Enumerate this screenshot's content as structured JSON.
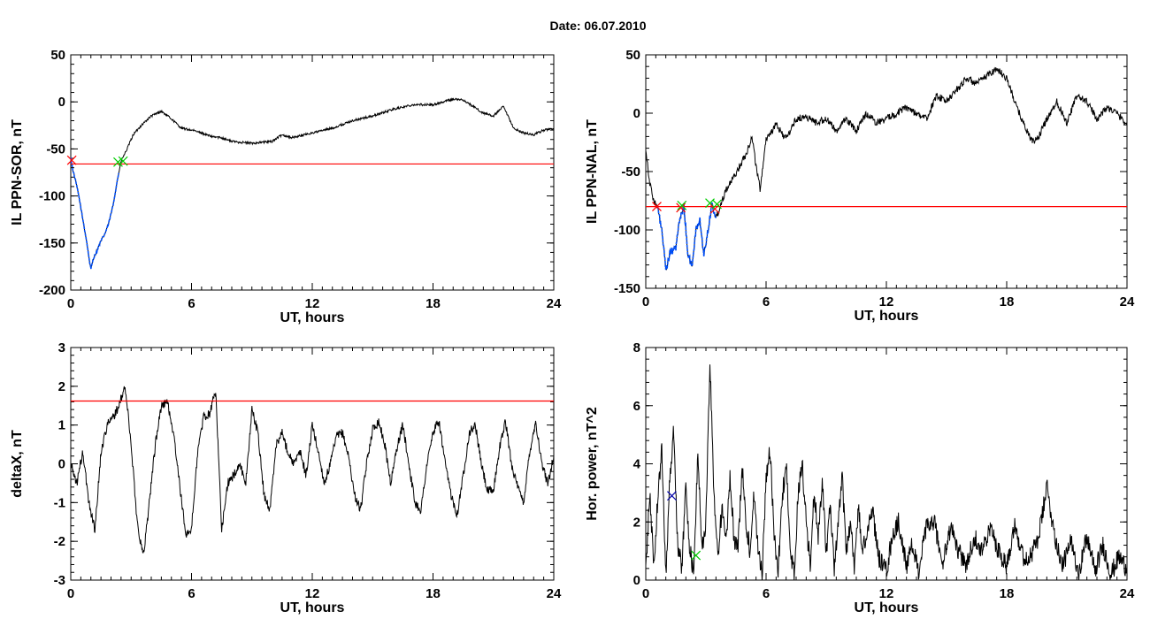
{
  "figure": {
    "title": "Date:  06.07.2010"
  },
  "colors": {
    "trace": "#000000",
    "threshold": "#ff0000",
    "event": "#0050ff",
    "marker_start": "#ff0000",
    "marker_end": "#00cc00",
    "marker_peak": "#0000aa"
  },
  "chart_data": [
    {
      "id": "il-sor",
      "type": "line",
      "title": "",
      "xlabel": "UT, hours",
      "ylabel": "IL PPN-SOR, nT",
      "xlim": [
        0,
        24
      ],
      "ylim": [
        -200,
        50
      ],
      "xticks": [
        0,
        6,
        12,
        18,
        24
      ],
      "yticks": [
        -200,
        -150,
        -100,
        -50,
        0,
        50
      ],
      "threshold": -66,
      "noise": 1.2,
      "series": [
        {
          "x": [
            0,
            0.1,
            0.25,
            0.4,
            0.6,
            0.8,
            0.9,
            1.0,
            1.1,
            1.3,
            1.5,
            1.7,
            1.9,
            2.1,
            2.3,
            2.5,
            2.8,
            3.1,
            3.5,
            4.0,
            4.5,
            5.0,
            5.5,
            6.0,
            6.5,
            7.0,
            7.5,
            8.0,
            9.0,
            10.0,
            10.5,
            11.0,
            12.0,
            13.0,
            14.0,
            15.0,
            16.0,
            17.0,
            18.0,
            18.5,
            19.0,
            19.5,
            20.0,
            20.5,
            21.0,
            21.5,
            22.0,
            22.5,
            23.0,
            23.5,
            24.0
          ],
          "y": [
            -60,
            -72,
            -85,
            -100,
            -125,
            -150,
            -165,
            -178,
            -168,
            -158,
            -148,
            -140,
            -128,
            -110,
            -85,
            -63,
            -50,
            -35,
            -25,
            -15,
            -10,
            -18,
            -28,
            -30,
            -33,
            -37,
            -38,
            -42,
            -44,
            -42,
            -35,
            -38,
            -33,
            -28,
            -20,
            -15,
            -8,
            -3,
            -3,
            0,
            3,
            2,
            -5,
            -12,
            -15,
            -5,
            -28,
            -33,
            -35,
            -30,
            -28
          ]
        }
      ],
      "event": {
        "x_start": 0,
        "x_end": 2.4,
        "color": "#0050ff"
      },
      "markers": [
        {
          "x": 0.05,
          "y": -62,
          "symbol": "x",
          "color": "#ff0000"
        },
        {
          "x": 2.35,
          "y": -64,
          "symbol": "x",
          "color": "#00cc00"
        },
        {
          "x": 2.6,
          "y": -63,
          "symbol": "x",
          "color": "#00cc00"
        }
      ]
    },
    {
      "id": "il-nal",
      "type": "line",
      "title": "",
      "xlabel": "UT, hours",
      "ylabel": "IL PPN-NAL, nT",
      "xlim": [
        0,
        24
      ],
      "ylim": [
        -150,
        50
      ],
      "xticks": [
        0,
        6,
        12,
        18,
        24
      ],
      "yticks": [
        -150,
        -100,
        -50,
        0,
        50
      ],
      "threshold": -80,
      "noise": 3,
      "series": [
        {
          "x": [
            0,
            0.2,
            0.4,
            0.6,
            0.8,
            1.0,
            1.2,
            1.5,
            1.7,
            1.9,
            2.1,
            2.3,
            2.5,
            2.7,
            2.9,
            3.1,
            3.3,
            3.5,
            3.7,
            4.0,
            4.3,
            4.6,
            5.0,
            5.3,
            5.5,
            5.7,
            6.0,
            6.5,
            7.0,
            7.5,
            8.0,
            8.5,
            9.0,
            9.5,
            10.0,
            10.5,
            11.0,
            11.5,
            12.0,
            13.0,
            14.0,
            14.5,
            15.0,
            15.5,
            16.0,
            16.5,
            17.0,
            17.5,
            18.0,
            18.5,
            19.0,
            19.3,
            19.6,
            20.0,
            20.5,
            21.0,
            21.5,
            22.0,
            22.5,
            23.0,
            23.5,
            24.0
          ],
          "y": [
            -30,
            -60,
            -75,
            -82,
            -100,
            -135,
            -120,
            -115,
            -90,
            -80,
            -120,
            -132,
            -100,
            -92,
            -122,
            -100,
            -78,
            -90,
            -80,
            -65,
            -58,
            -48,
            -35,
            -20,
            -45,
            -65,
            -22,
            -10,
            -22,
            -5,
            -3,
            -8,
            -5,
            -15,
            -5,
            -15,
            0,
            -8,
            -5,
            5,
            -5,
            15,
            10,
            20,
            30,
            25,
            32,
            38,
            30,
            5,
            -15,
            -25,
            -20,
            -5,
            10,
            -8,
            15,
            10,
            -5,
            5,
            0,
            -10
          ]
        }
      ],
      "event": {
        "x_start": 0.6,
        "x_end": 3.5,
        "color": "#0050ff"
      },
      "markers": [
        {
          "x": 0.55,
          "y": -80,
          "symbol": "x",
          "color": "#ff0000"
        },
        {
          "x": 1.75,
          "y": -81,
          "symbol": "x",
          "color": "#ff0000"
        },
        {
          "x": 1.8,
          "y": -79,
          "symbol": "x",
          "color": "#00cc00"
        },
        {
          "x": 3.2,
          "y": -77,
          "symbol": "x",
          "color": "#00cc00"
        },
        {
          "x": 3.45,
          "y": -82,
          "symbol": "x",
          "color": "#ff0000"
        },
        {
          "x": 3.55,
          "y": -78,
          "symbol": "x",
          "color": "#00cc00"
        }
      ]
    },
    {
      "id": "deltax",
      "type": "line",
      "title": "",
      "xlabel": "UT, hours",
      "ylabel": "deltaX, nT",
      "xlim": [
        0,
        24
      ],
      "ylim": [
        -3,
        3
      ],
      "xticks": [
        0,
        6,
        12,
        18,
        24
      ],
      "yticks": [
        -3,
        -2,
        -1,
        0,
        1,
        2,
        3
      ],
      "threshold": 1.62,
      "noise": 0.12,
      "series": [
        {
          "x": [
            0,
            0.3,
            0.6,
            0.9,
            1.2,
            1.5,
            1.8,
            2.1,
            2.4,
            2.7,
            3.0,
            3.3,
            3.6,
            3.9,
            4.2,
            4.5,
            4.8,
            5.1,
            5.4,
            5.7,
            6.0,
            6.3,
            6.6,
            6.9,
            7.2,
            7.5,
            7.8,
            8.1,
            8.4,
            8.7,
            9.0,
            9.3,
            9.6,
            9.9,
            10.2,
            10.5,
            10.8,
            11.1,
            11.4,
            11.7,
            12.0,
            12.3,
            12.6,
            12.9,
            13.2,
            13.5,
            13.8,
            14.1,
            14.4,
            14.7,
            15.0,
            15.3,
            15.6,
            15.9,
            16.2,
            16.5,
            16.8,
            17.1,
            17.4,
            17.7,
            18.0,
            18.3,
            18.6,
            18.9,
            19.2,
            19.5,
            19.8,
            20.1,
            20.4,
            20.7,
            21.0,
            21.3,
            21.6,
            21.9,
            22.2,
            22.5,
            22.8,
            23.1,
            23.4,
            23.7,
            24.0
          ],
          "y": [
            0,
            -0.5,
            0.3,
            -1.0,
            -1.7,
            0.3,
            1.0,
            1.2,
            1.5,
            2.0,
            0.5,
            -1.5,
            -2.4,
            -1.0,
            0.5,
            1.5,
            1.6,
            0.8,
            -0.5,
            -1.8,
            -1.7,
            0.3,
            1.2,
            1.3,
            1.9,
            -1.7,
            -0.5,
            -0.3,
            0,
            -0.5,
            1.4,
            0.8,
            -0.8,
            -1.2,
            0.5,
            0.8,
            0.3,
            0.0,
            0.3,
            -0.3,
            1.0,
            0.3,
            -0.5,
            0.0,
            0.7,
            0.8,
            0.2,
            -0.8,
            -1.2,
            0.0,
            0.9,
            1.1,
            0.5,
            -0.5,
            0.4,
            1.0,
            0.0,
            -1.0,
            -1.2,
            0.0,
            0.8,
            1.1,
            0.0,
            -0.8,
            -1.3,
            -0.3,
            0.8,
            1.0,
            0.0,
            -0.7,
            -0.7,
            0.4,
            1.1,
            0.0,
            -0.6,
            -1.0,
            0.3,
            1.1,
            0.0,
            -0.5,
            0.2
          ]
        }
      ],
      "markers": []
    },
    {
      "id": "hor-power",
      "type": "line",
      "title": "",
      "xlabel": "UT, hours",
      "ylabel": "Hor. power, nT^2",
      "xlim": [
        0,
        24
      ],
      "ylim": [
        0,
        8
      ],
      "xticks": [
        0,
        6,
        12,
        18,
        24
      ],
      "yticks": [
        0,
        2,
        4,
        6,
        8
      ],
      "threshold": null,
      "noise": 0.35,
      "series": [
        {
          "x": [
            0,
            0.2,
            0.4,
            0.6,
            0.8,
            1.0,
            1.2,
            1.4,
            1.6,
            1.8,
            2.0,
            2.2,
            2.4,
            2.6,
            2.8,
            3.0,
            3.2,
            3.4,
            3.6,
            3.8,
            4.0,
            4.2,
            4.4,
            4.6,
            4.8,
            5.0,
            5.2,
            5.4,
            5.6,
            5.8,
            6.0,
            6.2,
            6.4,
            6.6,
            6.8,
            7.0,
            7.2,
            7.4,
            7.6,
            7.8,
            8.0,
            8.2,
            8.4,
            8.6,
            8.8,
            9.0,
            9.2,
            9.4,
            9.6,
            9.8,
            10.0,
            10.2,
            10.4,
            10.6,
            10.8,
            11.0,
            11.3,
            11.6,
            12.0,
            12.3,
            12.6,
            13.0,
            13.3,
            13.6,
            14.0,
            14.4,
            14.8,
            15.2,
            15.6,
            16.0,
            16.4,
            16.8,
            17.2,
            17.6,
            18.0,
            18.4,
            18.8,
            19.2,
            19.6,
            20.0,
            20.4,
            20.8,
            21.2,
            21.6,
            22.0,
            22.4,
            22.8,
            23.2,
            23.6,
            24.0
          ],
          "y": [
            0.3,
            3.0,
            0.5,
            2.8,
            4.5,
            0.2,
            3.5,
            5.2,
            1.0,
            0.5,
            3.2,
            1.0,
            0.2,
            4.5,
            1.0,
            2.0,
            7.5,
            3.0,
            0.8,
            2.5,
            1.2,
            3.5,
            1.5,
            1.0,
            4.0,
            2.0,
            1.0,
            3.0,
            1.0,
            0.2,
            3.5,
            4.5,
            1.5,
            0.3,
            2.8,
            4.0,
            1.0,
            0.2,
            3.0,
            4.0,
            2.0,
            0.5,
            3.0,
            1.5,
            3.5,
            1.0,
            2.5,
            0.3,
            2.0,
            3.5,
            1.0,
            2.0,
            0.5,
            2.5,
            1.0,
            1.5,
            2.5,
            0.8,
            0.3,
            1.5,
            2.0,
            0.5,
            1.2,
            0.3,
            1.8,
            2.0,
            0.5,
            1.8,
            1.0,
            0.5,
            1.5,
            1.0,
            1.8,
            1.0,
            0.5,
            2.0,
            0.8,
            0.8,
            1.5,
            3.2,
            1.5,
            0.5,
            1.3,
            0.3,
            1.5,
            0.3,
            1.2,
            0.2,
            0.8,
            0.4
          ]
        }
      ],
      "markers": [
        {
          "x": 1.3,
          "y": 2.9,
          "symbol": "x",
          "color": "#0000aa"
        },
        {
          "x": 2.5,
          "y": 0.85,
          "symbol": "x",
          "color": "#00cc00"
        }
      ]
    }
  ]
}
